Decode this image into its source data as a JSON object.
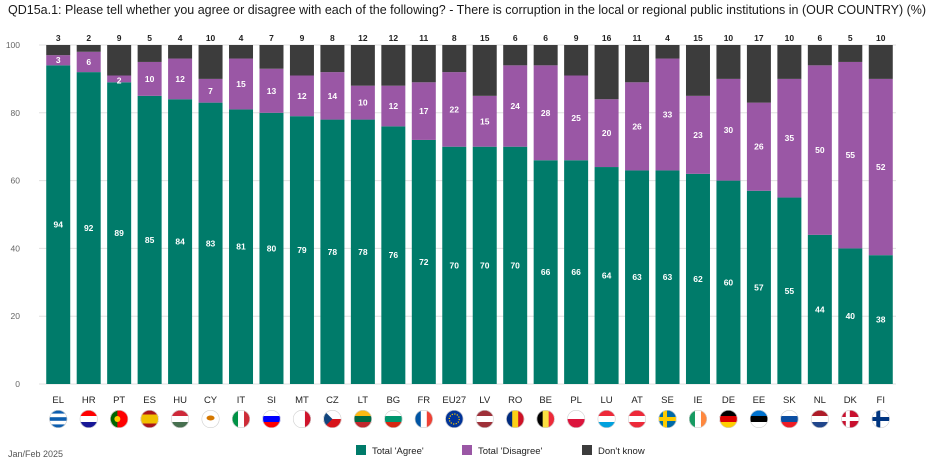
{
  "header": {
    "title": "QD15a.1: Please tell whether you agree or disagree with each of the following? - There is corruption in the local or regional public institutions in (OUR COUNTRY) (%)"
  },
  "footer": {
    "note": "Jan/Feb 2025"
  },
  "colors": {
    "agree": "#007b6a",
    "disagree": "#9a57a5",
    "dontknow": "#3c3c3c",
    "grid": "#e0e0e0"
  },
  "chart_data": {
    "type": "bar",
    "stacked": true,
    "title": "QD15a.1: Please tell whether you agree or disagree with each of the following? - There is corruption in the local or regional public institutions in (OUR COUNTRY) (%)",
    "xlabel": "",
    "ylabel": "",
    "ylim": [
      0,
      100
    ],
    "yticks": [
      0,
      20,
      40,
      60,
      80,
      100
    ],
    "grid": true,
    "legend_position": "bottom",
    "categories": [
      "EL",
      "HR",
      "PT",
      "ES",
      "HU",
      "CY",
      "IT",
      "SI",
      "MT",
      "CZ",
      "LT",
      "BG",
      "FR",
      "EU27",
      "LV",
      "RO",
      "BE",
      "PL",
      "LU",
      "AT",
      "SE",
      "IE",
      "DE",
      "EE",
      "SK",
      "NL",
      "DK",
      "FI"
    ],
    "series": [
      {
        "name": "Total 'Agree'",
        "key": "agree",
        "values": [
          94,
          92,
          89,
          85,
          84,
          83,
          81,
          80,
          79,
          78,
          78,
          76,
          72,
          70,
          70,
          70,
          66,
          66,
          64,
          63,
          63,
          62,
          60,
          57,
          55,
          44,
          40,
          38
        ]
      },
      {
        "name": "Total 'Disagree'",
        "key": "disagree",
        "values": [
          3,
          6,
          2,
          10,
          12,
          7,
          15,
          13,
          12,
          14,
          10,
          12,
          17,
          22,
          15,
          24,
          28,
          25,
          20,
          26,
          33,
          23,
          30,
          26,
          35,
          50,
          55,
          52
        ]
      },
      {
        "name": "Don't know",
        "key": "dontknow",
        "values": [
          3,
          2,
          9,
          5,
          4,
          10,
          4,
          7,
          9,
          8,
          12,
          12,
          11,
          8,
          15,
          6,
          6,
          9,
          16,
          11,
          4,
          15,
          10,
          17,
          10,
          6,
          5,
          10
        ]
      }
    ]
  }
}
